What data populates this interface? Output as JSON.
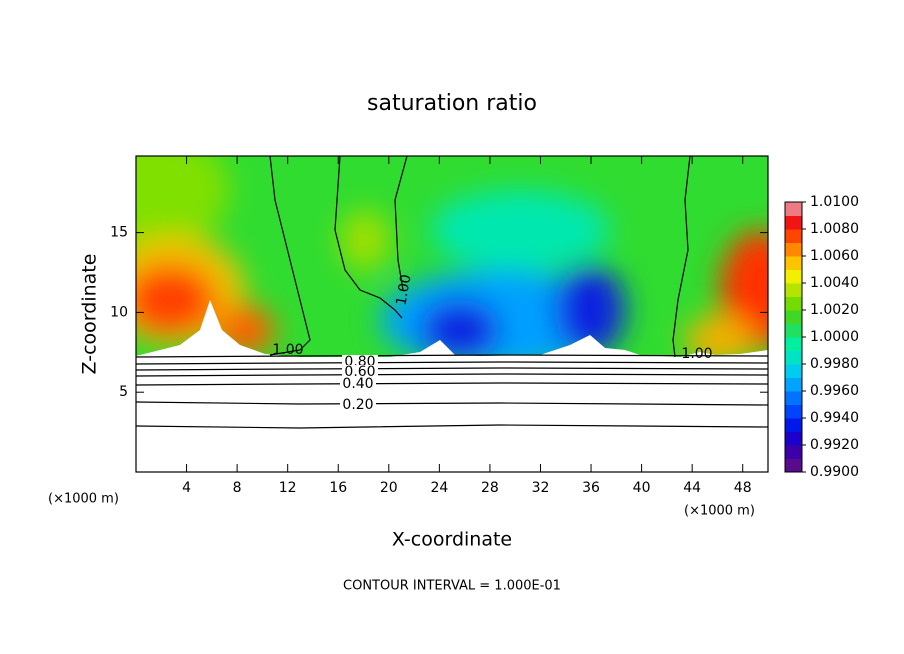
{
  "chart_data": {
    "type": "contour",
    "title": "saturation ratio",
    "x_label": "X-coordinate",
    "y_label": "Z-coordinate",
    "x_unit_label": "(×1000 m)",
    "footer": "CONTOUR INTERVAL = 1.000E-01",
    "xlim": [
      0,
      50
    ],
    "xticks": [
      4,
      8,
      12,
      16,
      20,
      24,
      28,
      32,
      36,
      40,
      44,
      48
    ],
    "ylim": [
      0,
      19.8
    ],
    "yticks": [
      5,
      10,
      15
    ],
    "contour_labels": [
      {
        "value": 1.0,
        "label": "1.00"
      },
      {
        "value": 0.8,
        "label": "0.80"
      },
      {
        "value": 0.6,
        "label": "0.60"
      },
      {
        "value": 0.4,
        "label": "0.40"
      },
      {
        "value": 0.2,
        "label": "0.20"
      }
    ],
    "colorbar": {
      "lim": [
        0.99,
        1.01
      ],
      "ticks": [
        {
          "value": 1.01,
          "label": "1.0100"
        },
        {
          "value": 1.008,
          "label": "1.0080"
        },
        {
          "value": 1.006,
          "label": "1.0060"
        },
        {
          "value": 1.004,
          "label": "1.0040"
        },
        {
          "value": 1.002,
          "label": "1.0020"
        },
        {
          "value": 1.0,
          "label": "1.0000"
        },
        {
          "value": 0.998,
          "label": "0.9980"
        },
        {
          "value": 0.996,
          "label": "0.9960"
        },
        {
          "value": 0.994,
          "label": "0.9940"
        },
        {
          "value": 0.992,
          "label": "0.9920"
        },
        {
          "value": 0.99,
          "label": "0.9900"
        }
      ],
      "colors": [
        "#5a0a8c",
        "#3c00a8",
        "#1c00cc",
        "#0018e8",
        "#0044ff",
        "#0074ff",
        "#00a4ff",
        "#00ccf0",
        "#00e4c4",
        "#00f0a0",
        "#20e060",
        "#40d824",
        "#74dc00",
        "#b4e400",
        "#f0f000",
        "#ffc400",
        "#ff8800",
        "#ff4400",
        "#f01414",
        "#f07a84"
      ]
    }
  }
}
